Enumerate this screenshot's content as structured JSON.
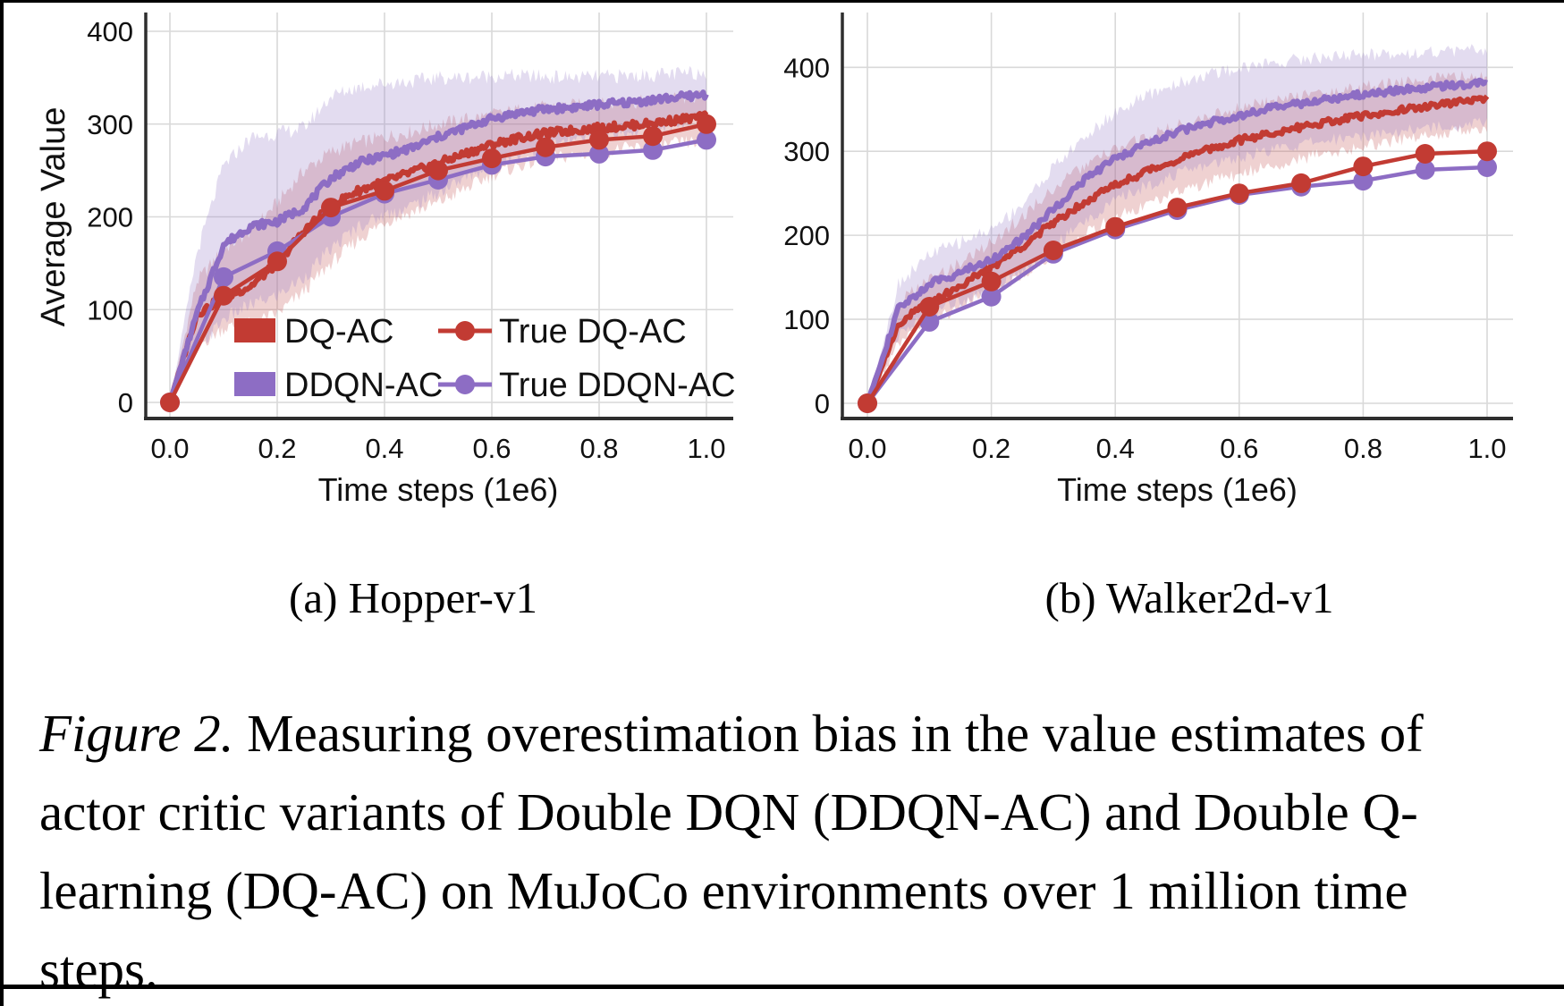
{
  "colors": {
    "red": "#c23b33",
    "purple": "#8d6dc4",
    "red_band": "rgba(197,86,86,0.27)",
    "purple_band": "rgba(150,124,198,0.27)",
    "grid": "#d9d9d9",
    "spine": "#2e2e2e",
    "text": "#111111"
  },
  "caption": {
    "label": "Figure 2.",
    "line1_rest": " Measuring overestimation bias in the value estimates of",
    "line2": "actor critic variants of Double DQN (DDQN-AC) and Double Q-",
    "line3": "learning (DQ-AC) on MuJoCo environments over 1 million time",
    "line4": "steps."
  },
  "chart_data": [
    {
      "type": "line",
      "subplot_label": "(a) Hopper-v1",
      "xlabel": "Time steps (1e6)",
      "ylabel": "Average Value",
      "xlim": [
        0,
        1
      ],
      "ylim": [
        0,
        400
      ],
      "grid": true,
      "legend_position": "lower right inside",
      "xticks": {
        "values": [
          0,
          0.2,
          0.4,
          0.6,
          0.8,
          1.0
        ],
        "labels": [
          "0.0",
          "0.2",
          "0.4",
          "0.6",
          "0.8",
          "1.0"
        ]
      },
      "yticks": {
        "values": [
          0,
          100,
          200,
          300,
          400
        ],
        "labels": [
          "0",
          "100",
          "200",
          "300",
          "400"
        ]
      },
      "x_dense": [
        0,
        0.05,
        0.1,
        0.15,
        0.2,
        0.25,
        0.3,
        0.35,
        0.4,
        0.45,
        0.5,
        0.55,
        0.6,
        0.65,
        0.7,
        0.75,
        0.8,
        0.85,
        0.9,
        0.95,
        1.0
      ],
      "x_markers": [
        0,
        0.1,
        0.2,
        0.3,
        0.4,
        0.5,
        0.6,
        0.7,
        0.8,
        0.9,
        1.0
      ],
      "series": [
        {
          "name": "DQ-AC",
          "kind": "shaded",
          "color": "red",
          "values": [
            0,
            95,
            113,
            125,
            150,
            185,
            212,
            228,
            238,
            248,
            258,
            268,
            278,
            285,
            290,
            293,
            296,
            298,
            301,
            305,
            308
          ],
          "band_upper": [
            0,
            130,
            165,
            185,
            215,
            250,
            270,
            280,
            286,
            292,
            300,
            305,
            310,
            315,
            318,
            320,
            321,
            323,
            325,
            328,
            330
          ],
          "band_lower": [
            0,
            60,
            80,
            85,
            95,
            120,
            150,
            175,
            195,
            205,
            215,
            230,
            245,
            255,
            262,
            266,
            270,
            273,
            276,
            279,
            282
          ]
        },
        {
          "name": "DDQN-AC",
          "kind": "shaded",
          "color": "purple",
          "values": [
            0,
            95,
            170,
            190,
            195,
            210,
            242,
            258,
            266,
            274,
            286,
            296,
            306,
            312,
            316,
            318,
            321,
            323,
            326,
            329,
            332
          ],
          "band_upper": [
            0,
            160,
            255,
            285,
            290,
            296,
            330,
            340,
            344,
            346,
            350,
            350,
            352,
            352,
            351,
            350,
            351,
            352,
            353,
            354,
            356
          ],
          "band_lower": [
            0,
            55,
            90,
            105,
            115,
            135,
            165,
            190,
            202,
            212,
            226,
            242,
            256,
            268,
            276,
            281,
            286,
            291,
            296,
            300,
            306
          ]
        },
        {
          "name": "True DQ-AC",
          "kind": "markers",
          "color": "red",
          "values": [
            0,
            115,
            152,
            210,
            228,
            250,
            263,
            275,
            283,
            287,
            300
          ]
        },
        {
          "name": "True DDQN-AC",
          "kind": "markers",
          "color": "purple",
          "values": [
            0,
            135,
            163,
            200,
            225,
            240,
            256,
            265,
            268,
            272,
            283
          ]
        }
      ]
    },
    {
      "type": "line",
      "subplot_label": "(b) Walker2d-v1",
      "xlabel": "Time steps (1e6)",
      "ylabel": "",
      "xlim": [
        0,
        1
      ],
      "ylim": [
        0,
        445
      ],
      "grid": true,
      "legend_position": "none",
      "xticks": {
        "values": [
          0,
          0.2,
          0.4,
          0.6,
          0.8,
          1.0
        ],
        "labels": [
          "0.0",
          "0.2",
          "0.4",
          "0.6",
          "0.8",
          "1.0"
        ]
      },
      "yticks": {
        "values": [
          0,
          100,
          200,
          300,
          400
        ],
        "labels": [
          "0",
          "100",
          "200",
          "300",
          "400"
        ]
      },
      "x_dense": [
        0,
        0.05,
        0.1,
        0.15,
        0.2,
        0.25,
        0.3,
        0.35,
        0.4,
        0.45,
        0.5,
        0.55,
        0.6,
        0.65,
        0.7,
        0.75,
        0.8,
        0.85,
        0.9,
        0.95,
        1.0
      ],
      "x_markers": [
        0,
        0.1,
        0.2,
        0.3,
        0.4,
        0.5,
        0.6,
        0.7,
        0.8,
        0.9,
        1.0
      ],
      "series": [
        {
          "name": "DQ-AC",
          "kind": "shaded",
          "color": "red",
          "values": [
            0,
            95,
            120,
            140,
            162,
            187,
            215,
            240,
            260,
            276,
            290,
            302,
            313,
            321,
            329,
            336,
            342,
            348,
            353,
            358,
            363
          ],
          "band_upper": [
            0,
            120,
            147,
            167,
            192,
            222,
            256,
            282,
            302,
            317,
            331,
            341,
            351,
            359,
            366,
            371,
            376,
            381,
            385,
            388,
            391
          ],
          "band_lower": [
            0,
            70,
            95,
            115,
            132,
            152,
            177,
            201,
            221,
            236,
            251,
            263,
            273,
            283,
            291,
            299,
            306,
            312,
            318,
            324,
            330
          ]
        },
        {
          "name": "DDQN-AC",
          "kind": "shaded",
          "color": "purple",
          "values": [
            0,
            112,
            142,
            156,
            171,
            196,
            231,
            266,
            291,
            309,
            323,
            334,
            343,
            351,
            357,
            363,
            368,
            372,
            376,
            379,
            382
          ],
          "band_upper": [
            0,
            142,
            177,
            192,
            207,
            237,
            281,
            316,
            346,
            366,
            381,
            391,
            399,
            405,
            410,
            413,
            415,
            417,
            418,
            419,
            421
          ],
          "band_lower": [
            0,
            82,
            107,
            122,
            137,
            157,
            186,
            216,
            241,
            259,
            273,
            284,
            293,
            301,
            308,
            314,
            319,
            324,
            328,
            331,
            334
          ]
        },
        {
          "name": "True DQ-AC",
          "kind": "markers",
          "color": "red",
          "values": [
            0,
            115,
            145,
            182,
            210,
            233,
            250,
            262,
            282,
            297,
            300
          ]
        },
        {
          "name": "True DDQN-AC",
          "kind": "markers",
          "color": "purple",
          "values": [
            0,
            97,
            127,
            178,
            207,
            230,
            248,
            258,
            265,
            278,
            281
          ]
        }
      ]
    }
  ]
}
